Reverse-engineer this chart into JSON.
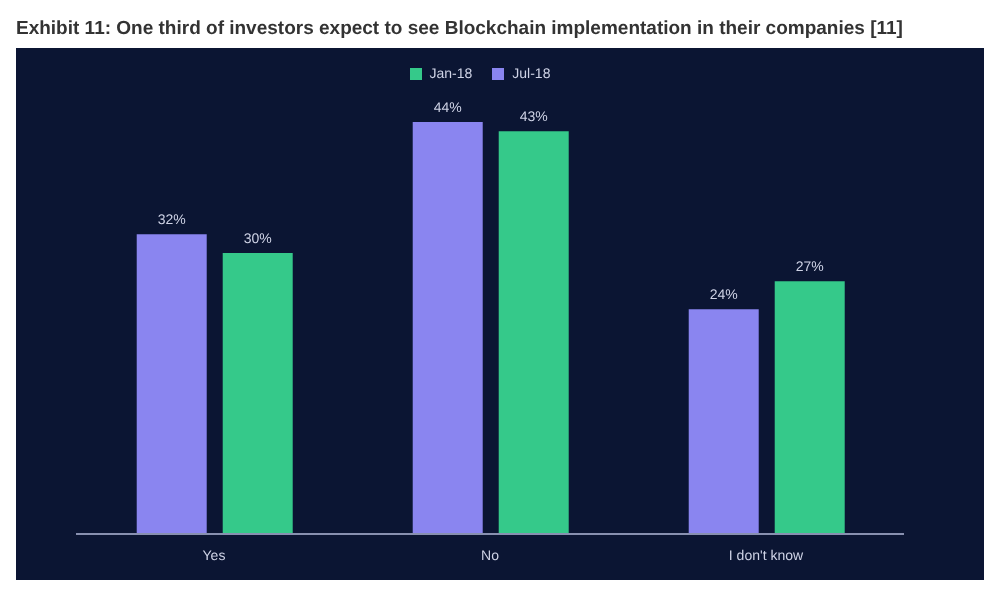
{
  "chart_data": {
    "type": "bar",
    "title": "Exhibit 11: One third of investors expect to see Blockchain implementation in their companies [11]",
    "categories": [
      "Yes",
      "No",
      "I don't know"
    ],
    "series": [
      {
        "name": "Jul-18",
        "color": "#8a85f0",
        "values": [
          32,
          44,
          24
        ],
        "value_labels": [
          "32%",
          "44%",
          "24%"
        ]
      },
      {
        "name": "Jan-18",
        "color": "#35c98a",
        "values": [
          30,
          43,
          27
        ],
        "value_labels": [
          "30%",
          "43%",
          "27%"
        ]
      }
    ],
    "legend": "top",
    "grid": false
  }
}
